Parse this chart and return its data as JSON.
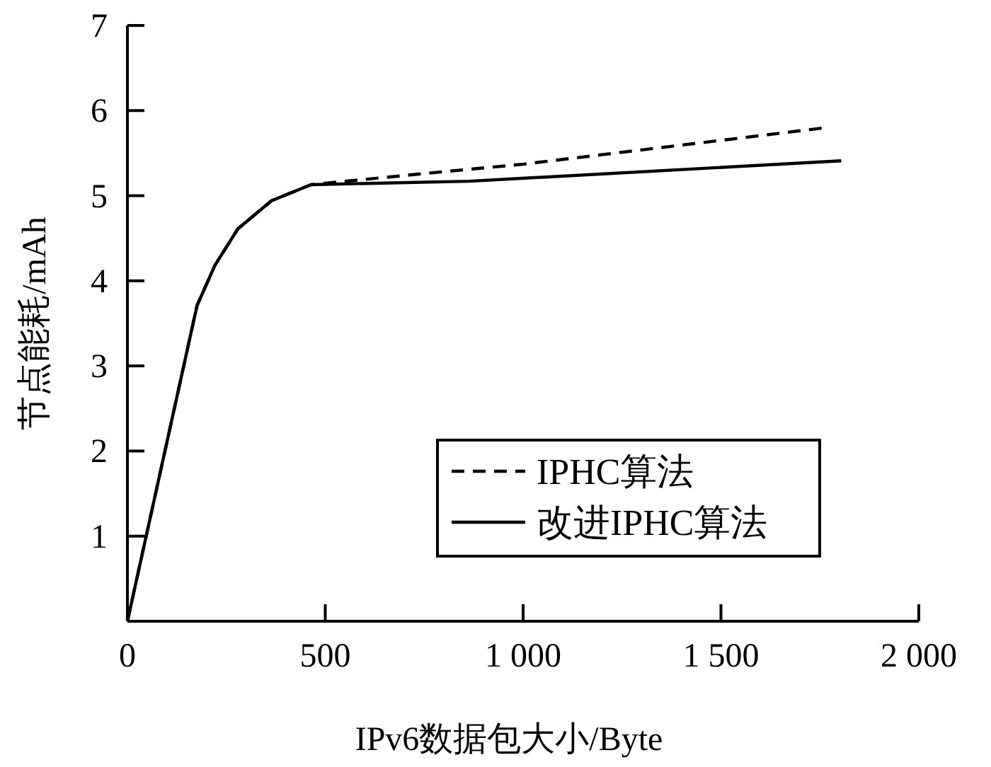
{
  "chart_data": {
    "type": "line",
    "xlabel": "IPv6数据包大小/Byte",
    "ylabel": "节点能耗/mAh",
    "xlim": [
      0,
      2000
    ],
    "ylim": [
      0,
      7
    ],
    "xticks": [
      0,
      500,
      {
        "value": 1000,
        "label": "1 000"
      },
      {
        "value": 1500,
        "label": "1 500"
      },
      {
        "value": 2000,
        "label": "2 000"
      }
    ],
    "yticks": [
      {
        "value": 0,
        "label": null
      },
      1,
      2,
      3,
      4,
      5,
      6,
      7
    ],
    "legend": "bottom right",
    "grid": false,
    "series": [
      {
        "name": "IPHC算法",
        "color": "#000000",
        "line_style": "dashed",
        "x": [
          0,
          176,
          221,
          279,
          364,
          464,
          750,
          1000,
          1767
        ],
        "values": [
          0,
          3.71,
          4.18,
          4.61,
          4.94,
          5.13,
          5.26,
          5.37,
          5.8
        ]
      },
      {
        "name": "改进IPHC算法",
        "color": "#000000",
        "line_style": "solid",
        "x": [
          0,
          176,
          221,
          279,
          364,
          464,
          864,
          1804
        ],
        "values": [
          0,
          3.71,
          4.18,
          4.61,
          4.94,
          5.13,
          5.17,
          5.41
        ]
      }
    ]
  }
}
